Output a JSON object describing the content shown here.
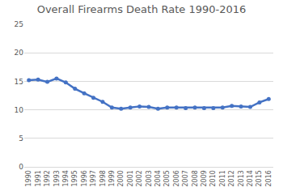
{
  "chart_data": {
    "type": "line",
    "title": "Overall Firearms Death Rate 1990-2016",
    "categories": [
      "1990",
      "1991",
      "1992",
      "1993",
      "1994",
      "1995",
      "1996",
      "1997",
      "1998",
      "1999",
      "2000",
      "2001",
      "2002",
      "2003",
      "2004",
      "2005",
      "2006",
      "2007",
      "2008",
      "2009",
      "2010",
      "2011",
      "2012",
      "2013",
      "2014",
      "2015",
      "2016"
    ],
    "values": [
      15.2,
      15.3,
      14.9,
      15.5,
      14.8,
      13.7,
      12.9,
      12.1,
      11.4,
      10.4,
      10.2,
      10.4,
      10.6,
      10.5,
      10.2,
      10.4,
      10.4,
      10.3,
      10.4,
      10.3,
      10.3,
      10.4,
      10.7,
      10.6,
      10.5,
      11.3,
      11.9
    ],
    "color": "#4472c4",
    "marker": "circle",
    "line_style": "solid",
    "ylim": [
      0,
      25
    ],
    "yticks": [
      0,
      5,
      10,
      15,
      20,
      25
    ],
    "grid": true
  }
}
